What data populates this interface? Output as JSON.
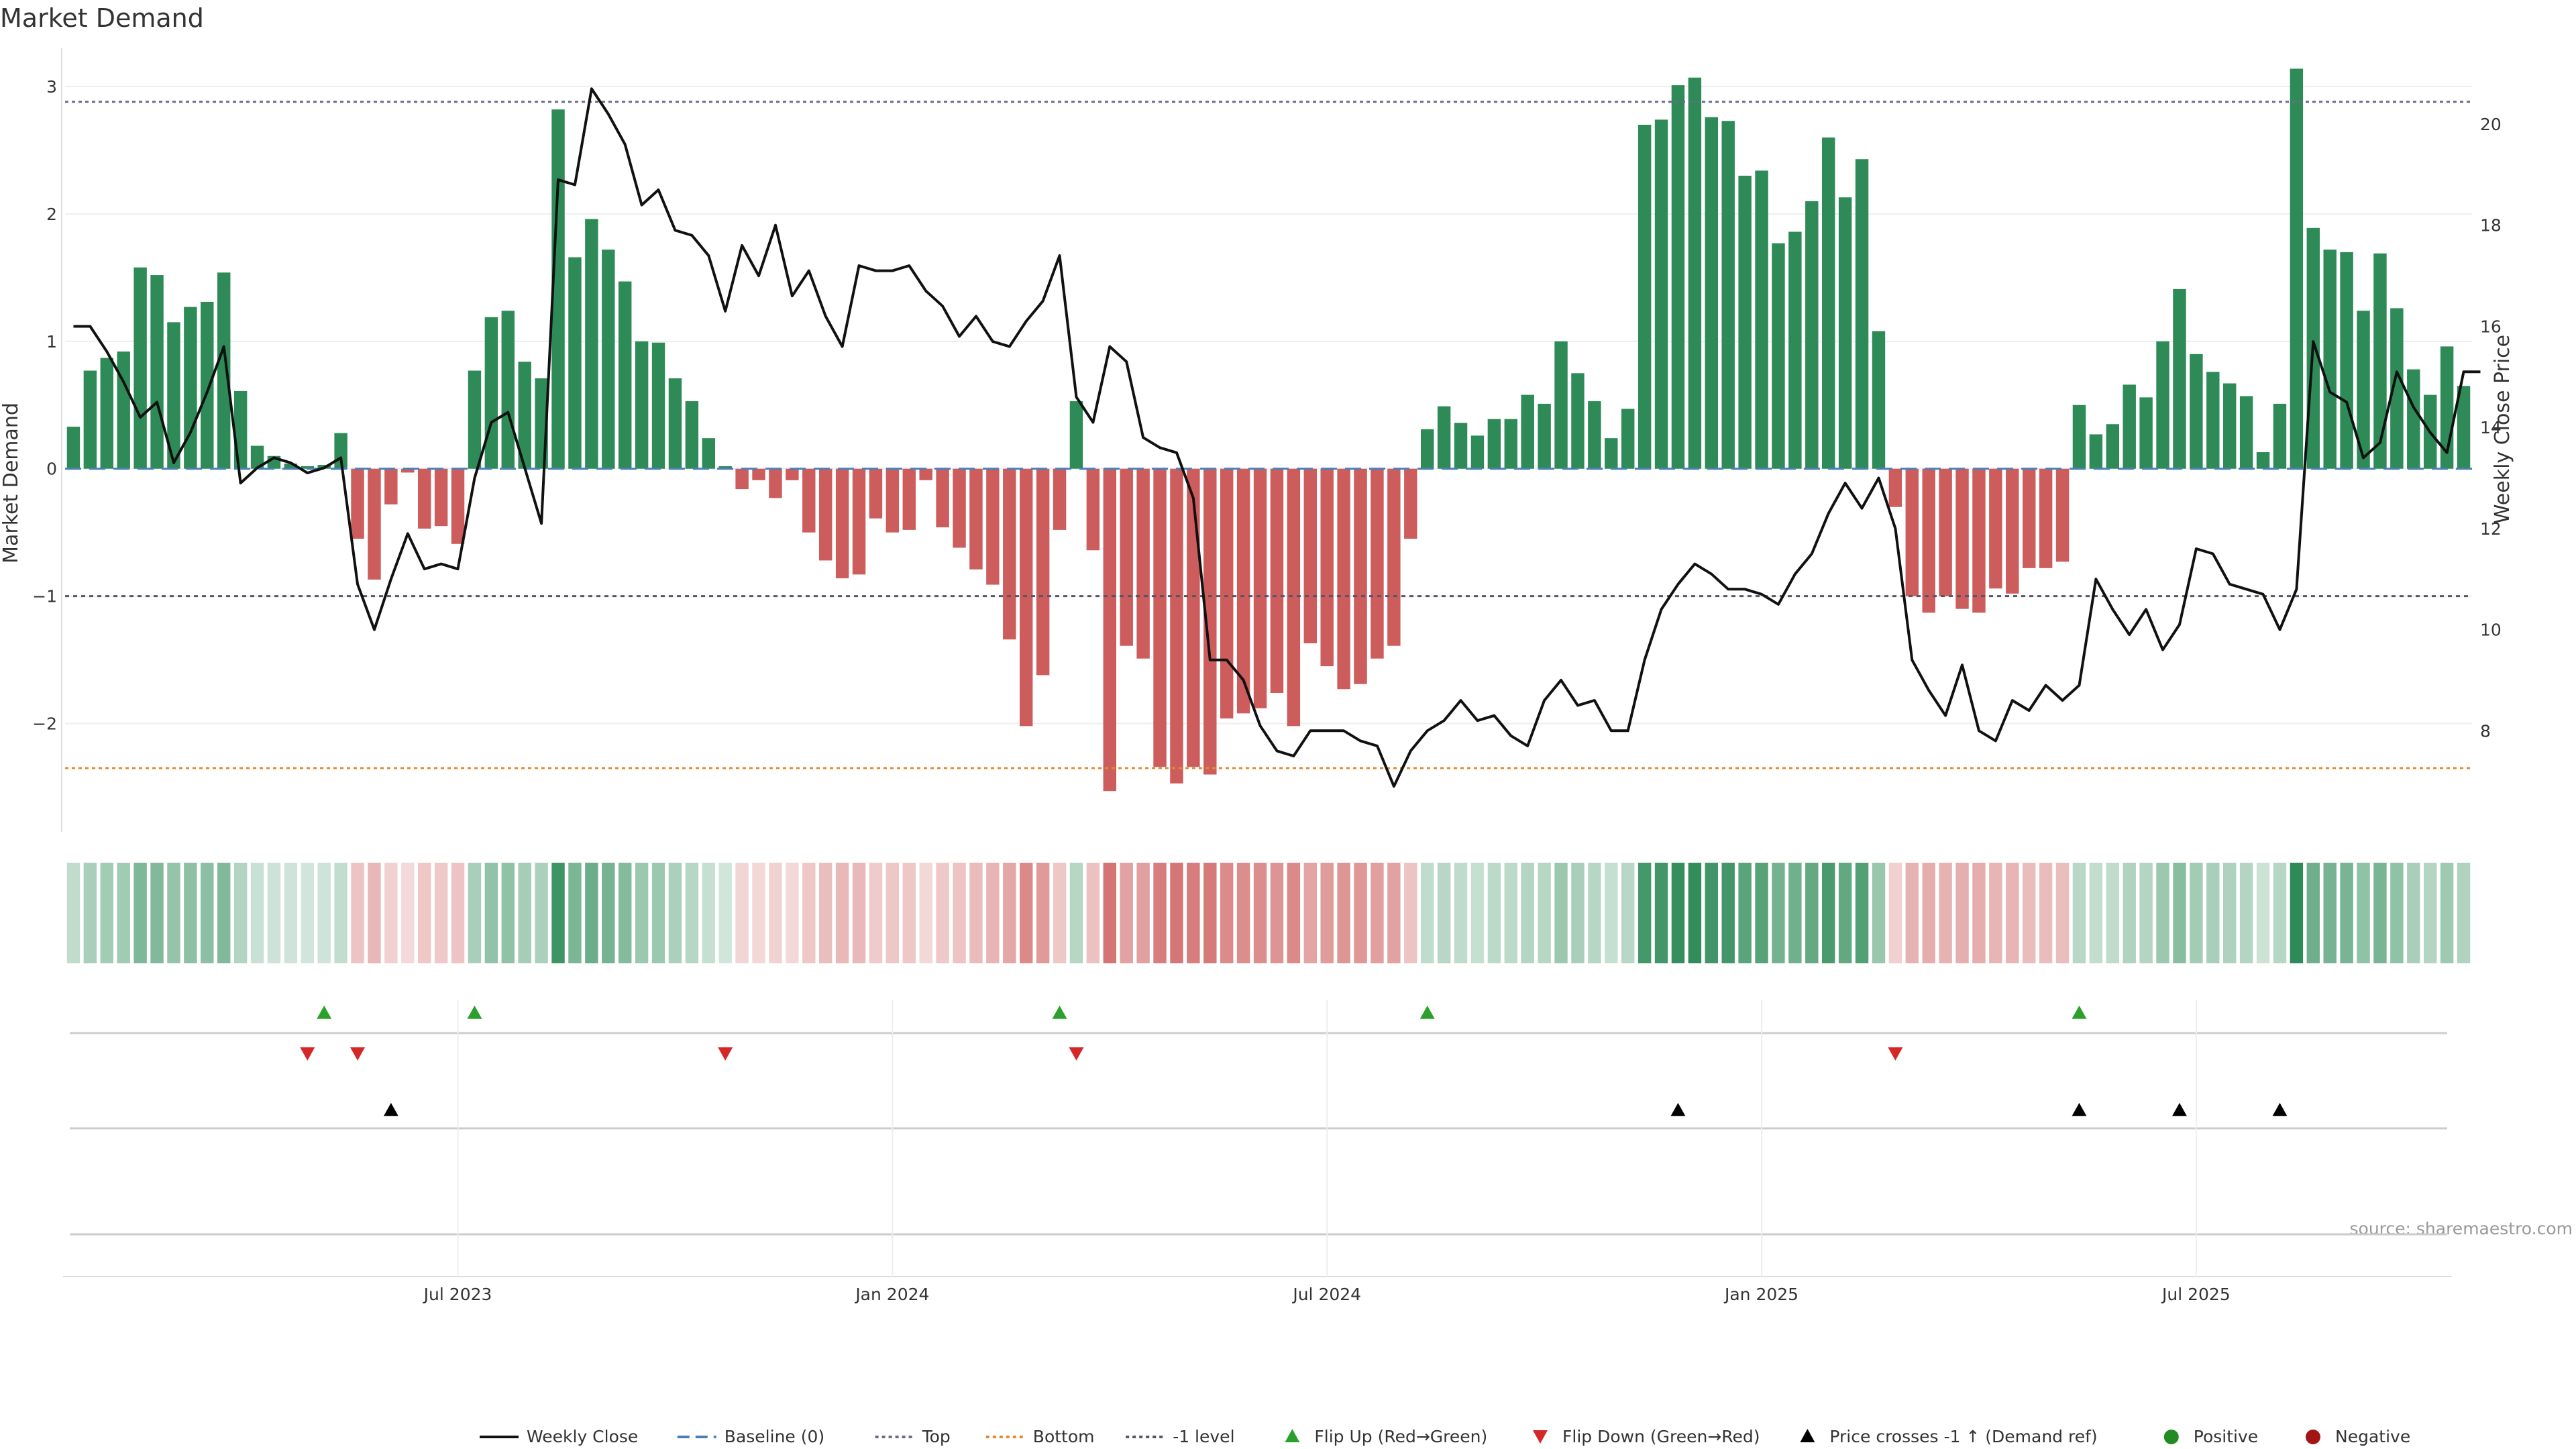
{
  "chart_data": {
    "type": "bar",
    "title": "Market Demand",
    "ylabel": "Market Demand",
    "y2label": "Weekly Close Price",
    "source": "source: sharemaestro.com",
    "ylim": [
      -2.85,
      3.3
    ],
    "y2lim": [
      6.0,
      21.5
    ],
    "yticks": [
      {
        "value": 3,
        "label": "3"
      },
      {
        "value": 2,
        "label": "2"
      },
      {
        "value": 1,
        "label": "1"
      },
      {
        "value": 0,
        "label": "0"
      },
      {
        "value": -1,
        "label": "−1"
      },
      {
        "value": -2,
        "label": "−2"
      }
    ],
    "y2ticks": [
      {
        "value": 20,
        "label": "20"
      },
      {
        "value": 18,
        "label": "18"
      },
      {
        "value": 16,
        "label": "16"
      },
      {
        "value": 14,
        "label": "14"
      },
      {
        "value": 12,
        "label": "12"
      },
      {
        "value": 10,
        "label": "10"
      },
      {
        "value": 8,
        "label": "8"
      }
    ],
    "xticks": [
      {
        "week": 23,
        "label": "Jul 2023"
      },
      {
        "week": 49,
        "label": "Jan 2024"
      },
      {
        "week": 75,
        "label": "Jul 2024"
      },
      {
        "week": 101,
        "label": "Jan 2025"
      },
      {
        "week": 127,
        "label": "Jul 2025"
      }
    ],
    "levels": {
      "top": 2.88,
      "bottom": -2.35,
      "minus_one": -1,
      "baseline": 0
    },
    "demand": [
      0.33,
      0.77,
      0.87,
      0.92,
      1.58,
      1.52,
      1.15,
      1.27,
      1.31,
      1.54,
      0.61,
      0.18,
      0.1,
      0.04,
      0.02,
      0.03,
      0.28,
      -0.55,
      -0.87,
      -0.28,
      -0.03,
      -0.47,
      -0.45,
      -0.59,
      0.77,
      1.19,
      1.24,
      0.84,
      0.71,
      2.82,
      1.66,
      1.96,
      1.72,
      1.47,
      1.0,
      0.99,
      0.71,
      0.53,
      0.24,
      0.02,
      -0.16,
      -0.09,
      -0.23,
      -0.09,
      -0.5,
      -0.72,
      -0.86,
      -0.83,
      -0.39,
      -0.5,
      -0.48,
      -0.09,
      -0.46,
      -0.62,
      -0.79,
      -0.91,
      -1.34,
      -2.02,
      -1.62,
      -0.48,
      0.53,
      -0.64,
      -2.53,
      -1.39,
      -1.49,
      -2.34,
      -2.47,
      -2.34,
      -2.4,
      -1.96,
      -1.92,
      -1.88,
      -1.76,
      -2.02,
      -1.37,
      -1.55,
      -1.73,
      -1.69,
      -1.49,
      -1.39,
      -0.55,
      0.31,
      0.49,
      0.36,
      0.26,
      0.39,
      0.39,
      0.58,
      0.51,
      1.0,
      0.75,
      0.53,
      0.24,
      0.47,
      2.7,
      2.74,
      3.01,
      3.07,
      2.76,
      2.73,
      2.3,
      2.34,
      1.77,
      1.86,
      2.1,
      2.6,
      2.13,
      2.43,
      1.08,
      -0.3,
      -1.0,
      -1.13,
      -1.0,
      -1.1,
      -1.13,
      -0.94,
      -0.98,
      -0.78,
      -0.78,
      -0.73,
      0.5,
      0.27,
      0.35,
      0.66,
      0.56,
      1.0,
      1.41,
      0.9,
      0.76,
      0.67,
      0.57,
      0.13,
      0.51,
      3.14,
      1.89,
      1.72,
      1.7,
      1.24,
      1.69,
      1.26,
      0.78,
      0.58,
      0.96,
      0.65
    ],
    "close": [
      16.0,
      16.0,
      15.5,
      14.9,
      14.2,
      14.5,
      13.3,
      13.9,
      14.7,
      15.6,
      12.9,
      13.2,
      13.4,
      13.3,
      13.1,
      13.2,
      13.4,
      10.9,
      10.0,
      11.0,
      11.9,
      11.2,
      11.3,
      11.2,
      13.0,
      14.1,
      14.3,
      13.2,
      12.1,
      18.9,
      18.8,
      20.7,
      20.2,
      19.6,
      18.4,
      18.7,
      17.9,
      17.8,
      17.4,
      16.3,
      17.6,
      17.0,
      18.0,
      16.6,
      17.1,
      16.2,
      15.6,
      17.2,
      17.1,
      17.1,
      17.2,
      16.7,
      16.4,
      15.8,
      16.2,
      15.7,
      15.6,
      16.1,
      16.5,
      17.4,
      14.6,
      14.1,
      15.6,
      15.3,
      13.8,
      13.6,
      13.5,
      12.6,
      9.4,
      9.4,
      9.0,
      8.1,
      7.6,
      7.5,
      8.0,
      8.0,
      8.0,
      7.8,
      7.7,
      6.9,
      7.6,
      8.0,
      8.2,
      8.6,
      8.2,
      8.3,
      7.9,
      7.7,
      8.6,
      9.0,
      8.5,
      8.6,
      8.0,
      8.0,
      9.4,
      10.4,
      10.9,
      11.3,
      11.1,
      10.8,
      10.8,
      10.7,
      10.5,
      11.1,
      11.5,
      12.3,
      12.9,
      12.4,
      13.0,
      12.0,
      9.4,
      8.8,
      8.3,
      9.3,
      8.0,
      7.8,
      8.6,
      8.4,
      8.9,
      8.6,
      8.9,
      11.0,
      10.4,
      9.9,
      10.4,
      9.6,
      10.1,
      11.6,
      11.5,
      10.9,
      10.8,
      10.7,
      10.0,
      10.8,
      15.7,
      14.7,
      14.5,
      13.4,
      13.7,
      15.1,
      14.4,
      13.9,
      13.5,
      15.1,
      15.1
    ],
    "flip_up_weeks": [
      15,
      24,
      59,
      81,
      120
    ],
    "flip_down_weeks": [
      14,
      17,
      39,
      60,
      109
    ],
    "price_cross_weeks": [
      19,
      96,
      120,
      126,
      132
    ]
  },
  "legend": [
    {
      "label": "Weekly Close",
      "kind": "line",
      "color": "#111111"
    },
    {
      "label": "Baseline (0)",
      "kind": "dash",
      "color": "#4a7fb8"
    },
    {
      "label": "Top",
      "kind": "dot",
      "color": "#6a6a8a"
    },
    {
      "label": "Bottom",
      "kind": "dot",
      "color": "#e08b2c"
    },
    {
      "label": "-1 level",
      "kind": "dot",
      "color": "#555566"
    },
    {
      "label": "Flip Up (Red→Green)",
      "kind": "tri-up",
      "color": "#2ca02c"
    },
    {
      "label": "Flip Down (Green→Red)",
      "kind": "tri-down",
      "color": "#d62728"
    },
    {
      "label": "Price crosses -1 ↑ (Demand ref)",
      "kind": "tri-up",
      "color": "#000000"
    },
    {
      "label": "Positive",
      "kind": "circle",
      "color": "#228b22"
    },
    {
      "label": "Negative",
      "kind": "circle",
      "color": "#a31515"
    }
  ],
  "colors": {
    "positive": "#2e8b57",
    "negative": "#cd5c5c",
    "close": "#111111"
  }
}
